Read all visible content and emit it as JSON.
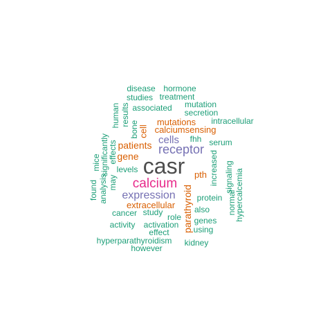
{
  "palette": {
    "gray": "#4d4d4d",
    "magenta": "#e7298a",
    "purple": "#7570b3",
    "orange": "#d95f02",
    "teal": "#1b9e77"
  },
  "words": [
    {
      "text": "casr",
      "color": "gray"
    },
    {
      "text": "calcium",
      "color": "magenta"
    },
    {
      "text": "receptor",
      "color": "purple"
    },
    {
      "text": "expression",
      "color": "purple"
    },
    {
      "text": "cells",
      "color": "purple"
    },
    {
      "text": "patients",
      "color": "orange"
    },
    {
      "text": "gene",
      "color": "orange"
    },
    {
      "text": "mutations",
      "color": "orange"
    },
    {
      "text": "calciumsensing",
      "color": "orange"
    },
    {
      "text": "extracellular",
      "color": "orange"
    },
    {
      "text": "parathyroid",
      "color": "orange"
    },
    {
      "text": "pth",
      "color": "orange"
    },
    {
      "text": "cell",
      "color": "orange"
    },
    {
      "text": "disease",
      "color": "teal"
    },
    {
      "text": "hormone",
      "color": "teal"
    },
    {
      "text": "studies",
      "color": "teal"
    },
    {
      "text": "treatment",
      "color": "teal"
    },
    {
      "text": "associated",
      "color": "teal"
    },
    {
      "text": "mutation",
      "color": "teal"
    },
    {
      "text": "secretion",
      "color": "teal"
    },
    {
      "text": "intracellular",
      "color": "teal"
    },
    {
      "text": "human",
      "color": "teal"
    },
    {
      "text": "results",
      "color": "teal"
    },
    {
      "text": "bone",
      "color": "teal"
    },
    {
      "text": "fhh",
      "color": "teal"
    },
    {
      "text": "serum",
      "color": "teal"
    },
    {
      "text": "significantly",
      "color": "teal"
    },
    {
      "text": "effects",
      "color": "teal"
    },
    {
      "text": "mice",
      "color": "teal"
    },
    {
      "text": "levels",
      "color": "teal"
    },
    {
      "text": "may",
      "color": "teal"
    },
    {
      "text": "analysis",
      "color": "teal"
    },
    {
      "text": "found",
      "color": "teal"
    },
    {
      "text": "increased",
      "color": "teal"
    },
    {
      "text": "signaling",
      "color": "teal"
    },
    {
      "text": "normal",
      "color": "teal"
    },
    {
      "text": "hypercalcemia",
      "color": "teal"
    },
    {
      "text": "protein",
      "color": "teal"
    },
    {
      "text": "also",
      "color": "teal"
    },
    {
      "text": "genes",
      "color": "teal"
    },
    {
      "text": "using",
      "color": "teal"
    },
    {
      "text": "cancer",
      "color": "teal"
    },
    {
      "text": "study",
      "color": "teal"
    },
    {
      "text": "role",
      "color": "teal"
    },
    {
      "text": "activity",
      "color": "teal"
    },
    {
      "text": "activation",
      "color": "teal"
    },
    {
      "text": "effect",
      "color": "teal"
    },
    {
      "text": "hyperparathyroidism",
      "color": "teal"
    },
    {
      "text": "kidney",
      "color": "teal"
    },
    {
      "text": "however",
      "color": "teal"
    }
  ]
}
